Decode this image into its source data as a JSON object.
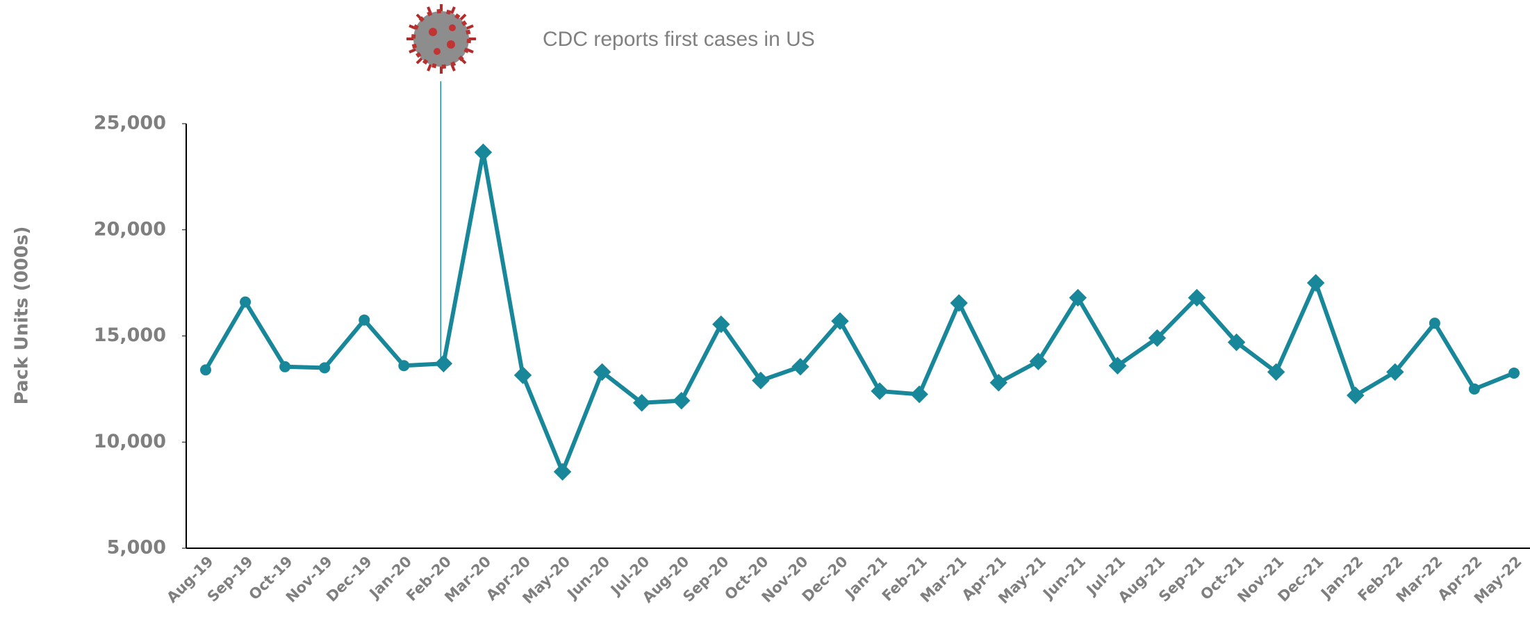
{
  "chart_data": {
    "type": "line",
    "y_label": "Pack Units (000s)",
    "annotation": "CDC reports first cases in US",
    "categories": [
      "Aug-19",
      "Sep-19",
      "Oct-19",
      "Nov-19",
      "Dec-19",
      "Jan-20",
      "Feb-20",
      "Mar-20",
      "Apr-20",
      "May-20",
      "Jun-20",
      "Jul-20",
      "Aug-20",
      "Sep-20",
      "Oct-20",
      "Nov-20",
      "Dec-20",
      "Jan-21",
      "Feb-21",
      "Mar-21",
      "Apr-21",
      "May-21",
      "Jun-21",
      "Jul-21",
      "Aug-21",
      "Sep-21",
      "Oct-21",
      "Nov-21",
      "Dec-21",
      "Jan-22",
      "Feb-22",
      "Mar-22",
      "Apr-22",
      "May-22"
    ],
    "values": [
      13400,
      16600,
      13550,
      13500,
      15750,
      13600,
      13700,
      23650,
      13150,
      8600,
      13300,
      11850,
      11950,
      15550,
      12900,
      13550,
      15700,
      12400,
      12250,
      16550,
      12800,
      13800,
      16800,
      13600,
      14900,
      16800,
      14700,
      13300,
      17500,
      12200,
      13300,
      15600,
      12500,
      13250
    ],
    "markers": [
      "circle",
      "circle",
      "circle",
      "circle",
      "circle",
      "circle",
      "diamond",
      "diamond",
      "diamond",
      "diamond",
      "diamond",
      "diamond",
      "diamond",
      "diamond",
      "diamond",
      "diamond",
      "diamond",
      "diamond",
      "diamond",
      "diamond",
      "diamond",
      "diamond",
      "diamond",
      "diamond",
      "diamond",
      "diamond",
      "diamond",
      "diamond",
      "diamond",
      "diamond",
      "diamond",
      "circle",
      "circle",
      "circle"
    ],
    "color": "#18879a",
    "ylim": [
      5000,
      25000
    ],
    "yticks": [
      {
        "value": 5000,
        "label": "5,000"
      },
      {
        "value": 10000,
        "label": "10,000"
      },
      {
        "value": 15000,
        "label": "15,000"
      },
      {
        "value": 20000,
        "label": "20,000"
      },
      {
        "value": 25000,
        "label": "25,000"
      }
    ],
    "grid": false
  }
}
